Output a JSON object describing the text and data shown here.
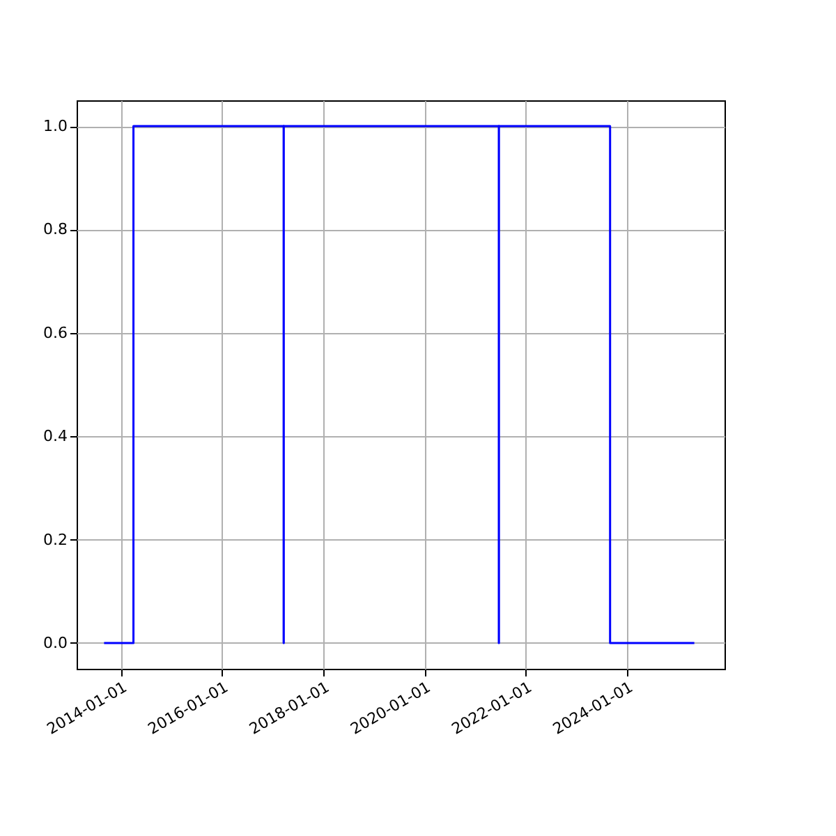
{
  "chart_data": {
    "type": "step",
    "x": [
      "2013-09-01",
      "2014-04-01",
      "2017-03-20",
      "2017-03-21",
      "2021-06-20",
      "2021-06-21",
      "2023-09-01",
      "2025-05-01"
    ],
    "series": [
      {
        "color": "#0000ff",
        "values": [
          0,
          1,
          0,
          1,
          0,
          1,
          0,
          0
        ]
      }
    ],
    "xlim": [
      "2013-02-15",
      "2025-12-05"
    ],
    "xticks": [
      "2014-01-01",
      "2016-01-01",
      "2018-01-01",
      "2020-01-01",
      "2022-01-01",
      "2024-01-01"
    ],
    "ylim": [
      -0.05,
      1.05
    ],
    "yticks": [
      {
        "value": 0,
        "label": "0.0"
      },
      {
        "value": 0.2,
        "label": "0.2"
      },
      {
        "value": 0.4,
        "label": "0.4"
      },
      {
        "value": 0.6,
        "label": "0.6"
      },
      {
        "value": 0.8,
        "label": "0.8"
      },
      {
        "value": 1,
        "label": "1.0"
      }
    ],
    "grid": true,
    "marker": "none",
    "line_style": "solid"
  }
}
